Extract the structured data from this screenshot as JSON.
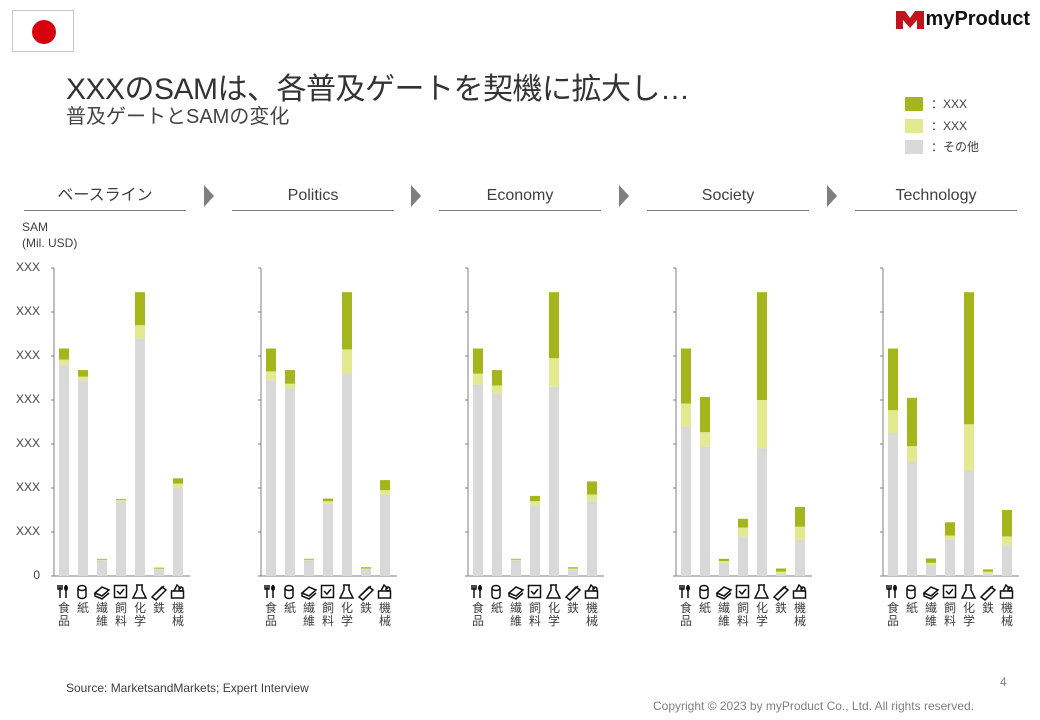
{
  "header": {
    "flag_icon": "japan-flag-icon",
    "logo_text": "myProduct",
    "title": "XXXのSAMは、各普及ゲートを契機に拡大し…",
    "subtitle": "普及ゲートとSAMの変化"
  },
  "legend": [
    {
      "label": "：XXX",
      "color": "#a5b51c"
    },
    {
      "label": "：XXX",
      "color": "#e2e98f"
    },
    {
      "label": "：その他",
      "color": "#d9d9d9"
    }
  ],
  "panels": [
    "ベースライン",
    "Politics",
    "Economy",
    "Society",
    "Technology"
  ],
  "axis": {
    "unit_line1": "SAM",
    "unit_line2": "(Mil. USD)",
    "tick_labels": [
      "0",
      "XXX",
      "XXX",
      "XXX",
      "XXX",
      "XXX",
      "XXX",
      "XXX"
    ]
  },
  "chart_data": {
    "type": "bar",
    "stacked": true,
    "ylim": [
      0,
      7
    ],
    "categories": [
      "食品",
      "紙",
      "繊維",
      "飼料",
      "化学",
      "鉄",
      "機械"
    ],
    "category_icons": [
      "cutlery-icon",
      "paper-roll-icon",
      "fabric-icon",
      "feed-icon",
      "flask-icon",
      "steel-icon",
      "machine-icon"
    ],
    "series_colors": [
      "#d9d9d9",
      "#e2e98f",
      "#a5b51c"
    ],
    "panels": [
      {
        "panel": "ベースライン",
        "series": [
          {
            "name": "その他",
            "values": [
              4.8,
              4.45,
              0.35,
              1.7,
              5.4,
              0.15,
              2.0
            ]
          },
          {
            "name": "XXX",
            "values": [
              0.12,
              0.08,
              0.02,
              0.03,
              0.3,
              0.02,
              0.1
            ]
          },
          {
            "name": "XXX",
            "values": [
              0.25,
              0.15,
              0.02,
              0.02,
              0.75,
              0.02,
              0.12
            ]
          }
        ]
      },
      {
        "panel": "Politics",
        "series": [
          {
            "name": "その他",
            "values": [
              4.45,
              4.25,
              0.35,
              1.65,
              4.6,
              0.15,
              1.85
            ]
          },
          {
            "name": "XXX",
            "values": [
              0.2,
              0.12,
              0.02,
              0.05,
              0.55,
              0.02,
              0.1
            ]
          },
          {
            "name": "XXX",
            "values": [
              0.52,
              0.31,
              0.02,
              0.06,
              1.3,
              0.03,
              0.23
            ]
          }
        ]
      },
      {
        "panel": "Economy",
        "series": [
          {
            "name": "その他",
            "values": [
              4.35,
              4.15,
              0.35,
              1.6,
              4.3,
              0.14,
              1.7
            ]
          },
          {
            "name": "XXX",
            "values": [
              0.25,
              0.18,
              0.02,
              0.1,
              0.65,
              0.03,
              0.15
            ]
          },
          {
            "name": "XXX",
            "values": [
              0.57,
              0.35,
              0.02,
              0.12,
              1.5,
              0.03,
              0.3
            ]
          }
        ]
      },
      {
        "panel": "Society",
        "series": [
          {
            "name": "その他",
            "values": [
              3.4,
              2.95,
              0.3,
              0.9,
              2.9,
              0.05,
              0.82
            ]
          },
          {
            "name": "XXX",
            "values": [
              0.52,
              0.32,
              0.04,
              0.2,
              1.1,
              0.05,
              0.3
            ]
          },
          {
            "name": "XXX",
            "values": [
              1.25,
              0.8,
              0.05,
              0.2,
              2.45,
              0.07,
              0.45
            ]
          }
        ]
      },
      {
        "panel": "Technology",
        "series": [
          {
            "name": "その他",
            "values": [
              3.25,
              2.6,
              0.25,
              0.82,
              2.4,
              0.05,
              0.7
            ]
          },
          {
            "name": "XXX",
            "values": [
              0.52,
              0.35,
              0.05,
              0.1,
              1.05,
              0.05,
              0.2
            ]
          },
          {
            "name": "XXX",
            "values": [
              1.4,
              1.1,
              0.1,
              0.3,
              3.0,
              0.05,
              0.6
            ]
          }
        ]
      }
    ]
  },
  "footer": {
    "source": "Source: MarketsandMarkets; Expert Interview",
    "page_number": "4",
    "copyright": "Copyright © 2023 by myProduct Co., Ltd.  All rights reserved."
  }
}
